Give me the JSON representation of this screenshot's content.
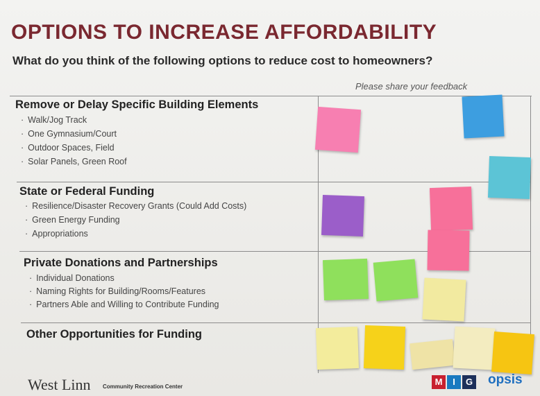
{
  "header": {
    "title": "OPTIONS TO INCREASE AFFORDABILITY",
    "subtitle": "What do you think of the following options to reduce cost to homeowners?"
  },
  "feedback_label": "Please share your feedback",
  "sections": [
    {
      "title": "Remove or Delay Specific Building Elements",
      "items": [
        "Walk/Jog Track",
        "One Gymnasium/Court",
        "Outdoor Spaces, Field",
        "Solar Panels, Green Roof"
      ]
    },
    {
      "title": "State or Federal Funding",
      "items": [
        "Resilience/Disaster Recovery Grants (Could Add Costs)",
        "Green Energy Funding",
        "Appropriations"
      ]
    },
    {
      "title": "Private Donations and Partnerships",
      "items": [
        "Individual Donations",
        "Naming Rights for Building/Rooms/Features",
        "Partners Able and Willing to Contribute Funding"
      ]
    },
    {
      "title": "Other Opportunities for Funding",
      "items": []
    }
  ],
  "footer": {
    "logo": "West Linn",
    "tagline": "Community Recreation Center",
    "partner_letters": [
      "M",
      "I",
      "G"
    ],
    "partner": "opsis"
  }
}
